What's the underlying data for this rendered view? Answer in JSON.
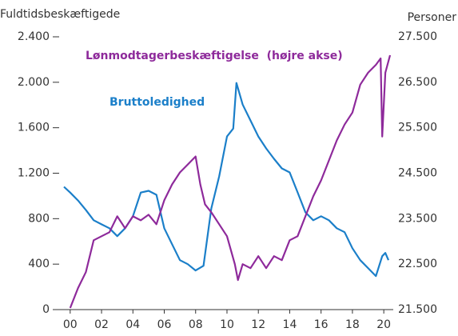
{
  "chart_data": {
    "type": "line",
    "y_label": "Fuldtidsbeskæftigede",
    "y2_label": "Personer",
    "xlim": [
      -0.5,
      20.4
    ],
    "xticks": [
      {
        "value": 0,
        "label": "00"
      },
      {
        "value": 2,
        "label": "02"
      },
      {
        "value": 4,
        "label": "04"
      },
      {
        "value": 6,
        "label": "06"
      },
      {
        "value": 8,
        "label": "08"
      },
      {
        "value": 10,
        "label": "10"
      },
      {
        "value": 12,
        "label": "12"
      },
      {
        "value": 14,
        "label": "14"
      },
      {
        "value": 16,
        "label": "16"
      },
      {
        "value": 18,
        "label": "18"
      },
      {
        "value": 20,
        "label": "20"
      }
    ],
    "ylim": [
      0,
      2400
    ],
    "yticks": [
      0,
      {
        "value": 400,
        "label": "400"
      },
      {
        "value": 800,
        "label": "800"
      },
      {
        "value": 1200,
        "label": "1.200"
      },
      {
        "value": 1600,
        "label": "1.600"
      },
      {
        "value": 2000,
        "label": "2.000"
      },
      {
        "value": 2400,
        "label": "2.400"
      }
    ],
    "y2lim": [
      21500,
      27500
    ],
    "y2ticks": [
      {
        "value": 21500,
        "label": "21.500"
      },
      {
        "value": 22500,
        "label": "22.500"
      },
      {
        "value": 23500,
        "label": "23.500"
      },
      {
        "value": 24500,
        "label": "24.500"
      },
      {
        "value": 25500,
        "label": "25.500"
      },
      {
        "value": 26500,
        "label": "26.500"
      },
      {
        "value": 27500,
        "label": "27.500"
      }
    ],
    "grid": false,
    "series": [
      {
        "name": "Bruttoledighed",
        "color": "#1b7fc9",
        "axis": "y",
        "x": [
          -0.4,
          0,
          0.5,
          1,
          1.5,
          2,
          2.5,
          3,
          3.5,
          4,
          4.5,
          5,
          5.5,
          6,
          6.5,
          7,
          7.5,
          8,
          8.5,
          9,
          9.5,
          10,
          10.4,
          10.6,
          11,
          11.5,
          12,
          12.5,
          13,
          13.5,
          14,
          14.5,
          15,
          15.5,
          16,
          16.5,
          17,
          17.5,
          18,
          18.5,
          19,
          19.5,
          19.9,
          20.1,
          20.3
        ],
        "values": [
          1080,
          1030,
          960,
          877,
          786,
          750,
          716,
          646,
          716,
          821,
          1030,
          1045,
          1010,
          716,
          575,
          435,
          400,
          344,
          386,
          891,
          1172,
          1523,
          1593,
          1994,
          1804,
          1664,
          1523,
          1418,
          1327,
          1242,
          1207,
          1032,
          856,
          786,
          821,
          786,
          716,
          681,
          540,
          435,
          365,
          295,
          470,
          498,
          435
        ]
      },
      {
        "name": "Lønmodtagerbeskæftigelse  (højre akse)",
        "color": "#8e2a9b",
        "axis": "y2",
        "x": [
          0,
          0.5,
          1,
          1.5,
          2,
          2.5,
          3,
          3.5,
          4,
          4.5,
          5,
          5.5,
          6,
          6.5,
          7,
          7.5,
          8,
          8.3,
          8.6,
          9,
          9.5,
          10,
          10.5,
          10.7,
          11,
          11.5,
          12,
          12.5,
          13,
          13.5,
          14,
          14.5,
          15,
          15.5,
          16,
          16.5,
          17,
          17.5,
          18,
          18.5,
          19,
          19.5,
          19.8,
          19.9,
          20.1,
          20.4
        ],
        "values": [
          21535,
          21974,
          22324,
          23026,
          23114,
          23201,
          23552,
          23289,
          23552,
          23464,
          23587,
          23377,
          23903,
          24254,
          24517,
          24692,
          24868,
          24254,
          23815,
          23640,
          23377,
          23114,
          22500,
          22149,
          22500,
          22412,
          22675,
          22412,
          22675,
          22587,
          23026,
          23114,
          23552,
          23991,
          24342,
          24780,
          25219,
          25569,
          25833,
          26447,
          26710,
          26885,
          27025,
          25306,
          26710,
          27096
        ]
      }
    ]
  }
}
